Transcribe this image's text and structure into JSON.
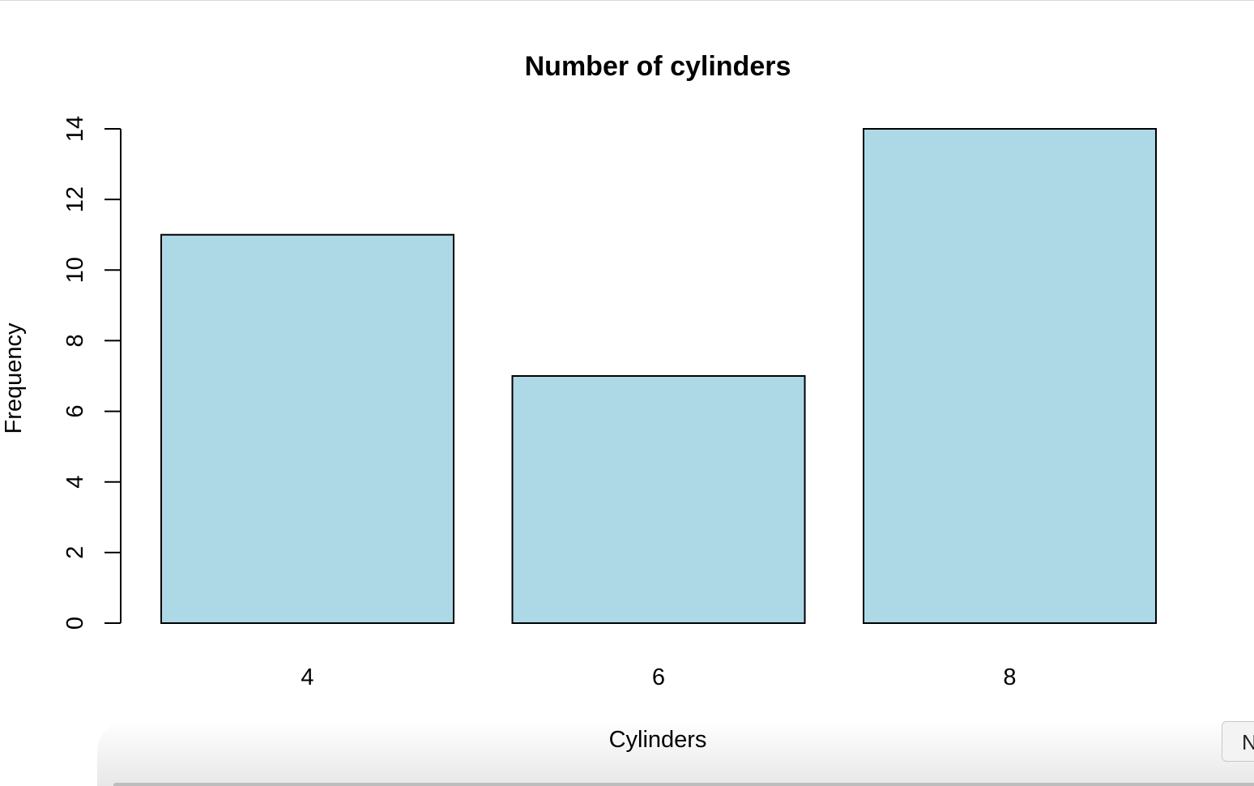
{
  "chart_data": {
    "type": "bar",
    "title": "Number of cylinders",
    "xlabel": "Cylinders",
    "ylabel": "Frequency",
    "categories": [
      "4",
      "6",
      "8"
    ],
    "values": [
      11,
      7,
      14
    ],
    "ylim": [
      0,
      14
    ],
    "yticks": [
      "0",
      "2",
      "4",
      "6",
      "8",
      "10",
      "12",
      "14"
    ],
    "bar_color": "#add8e6",
    "bar_outline": "#000000",
    "grid": false,
    "legend": "none"
  },
  "corner_button": {
    "label": "N"
  }
}
